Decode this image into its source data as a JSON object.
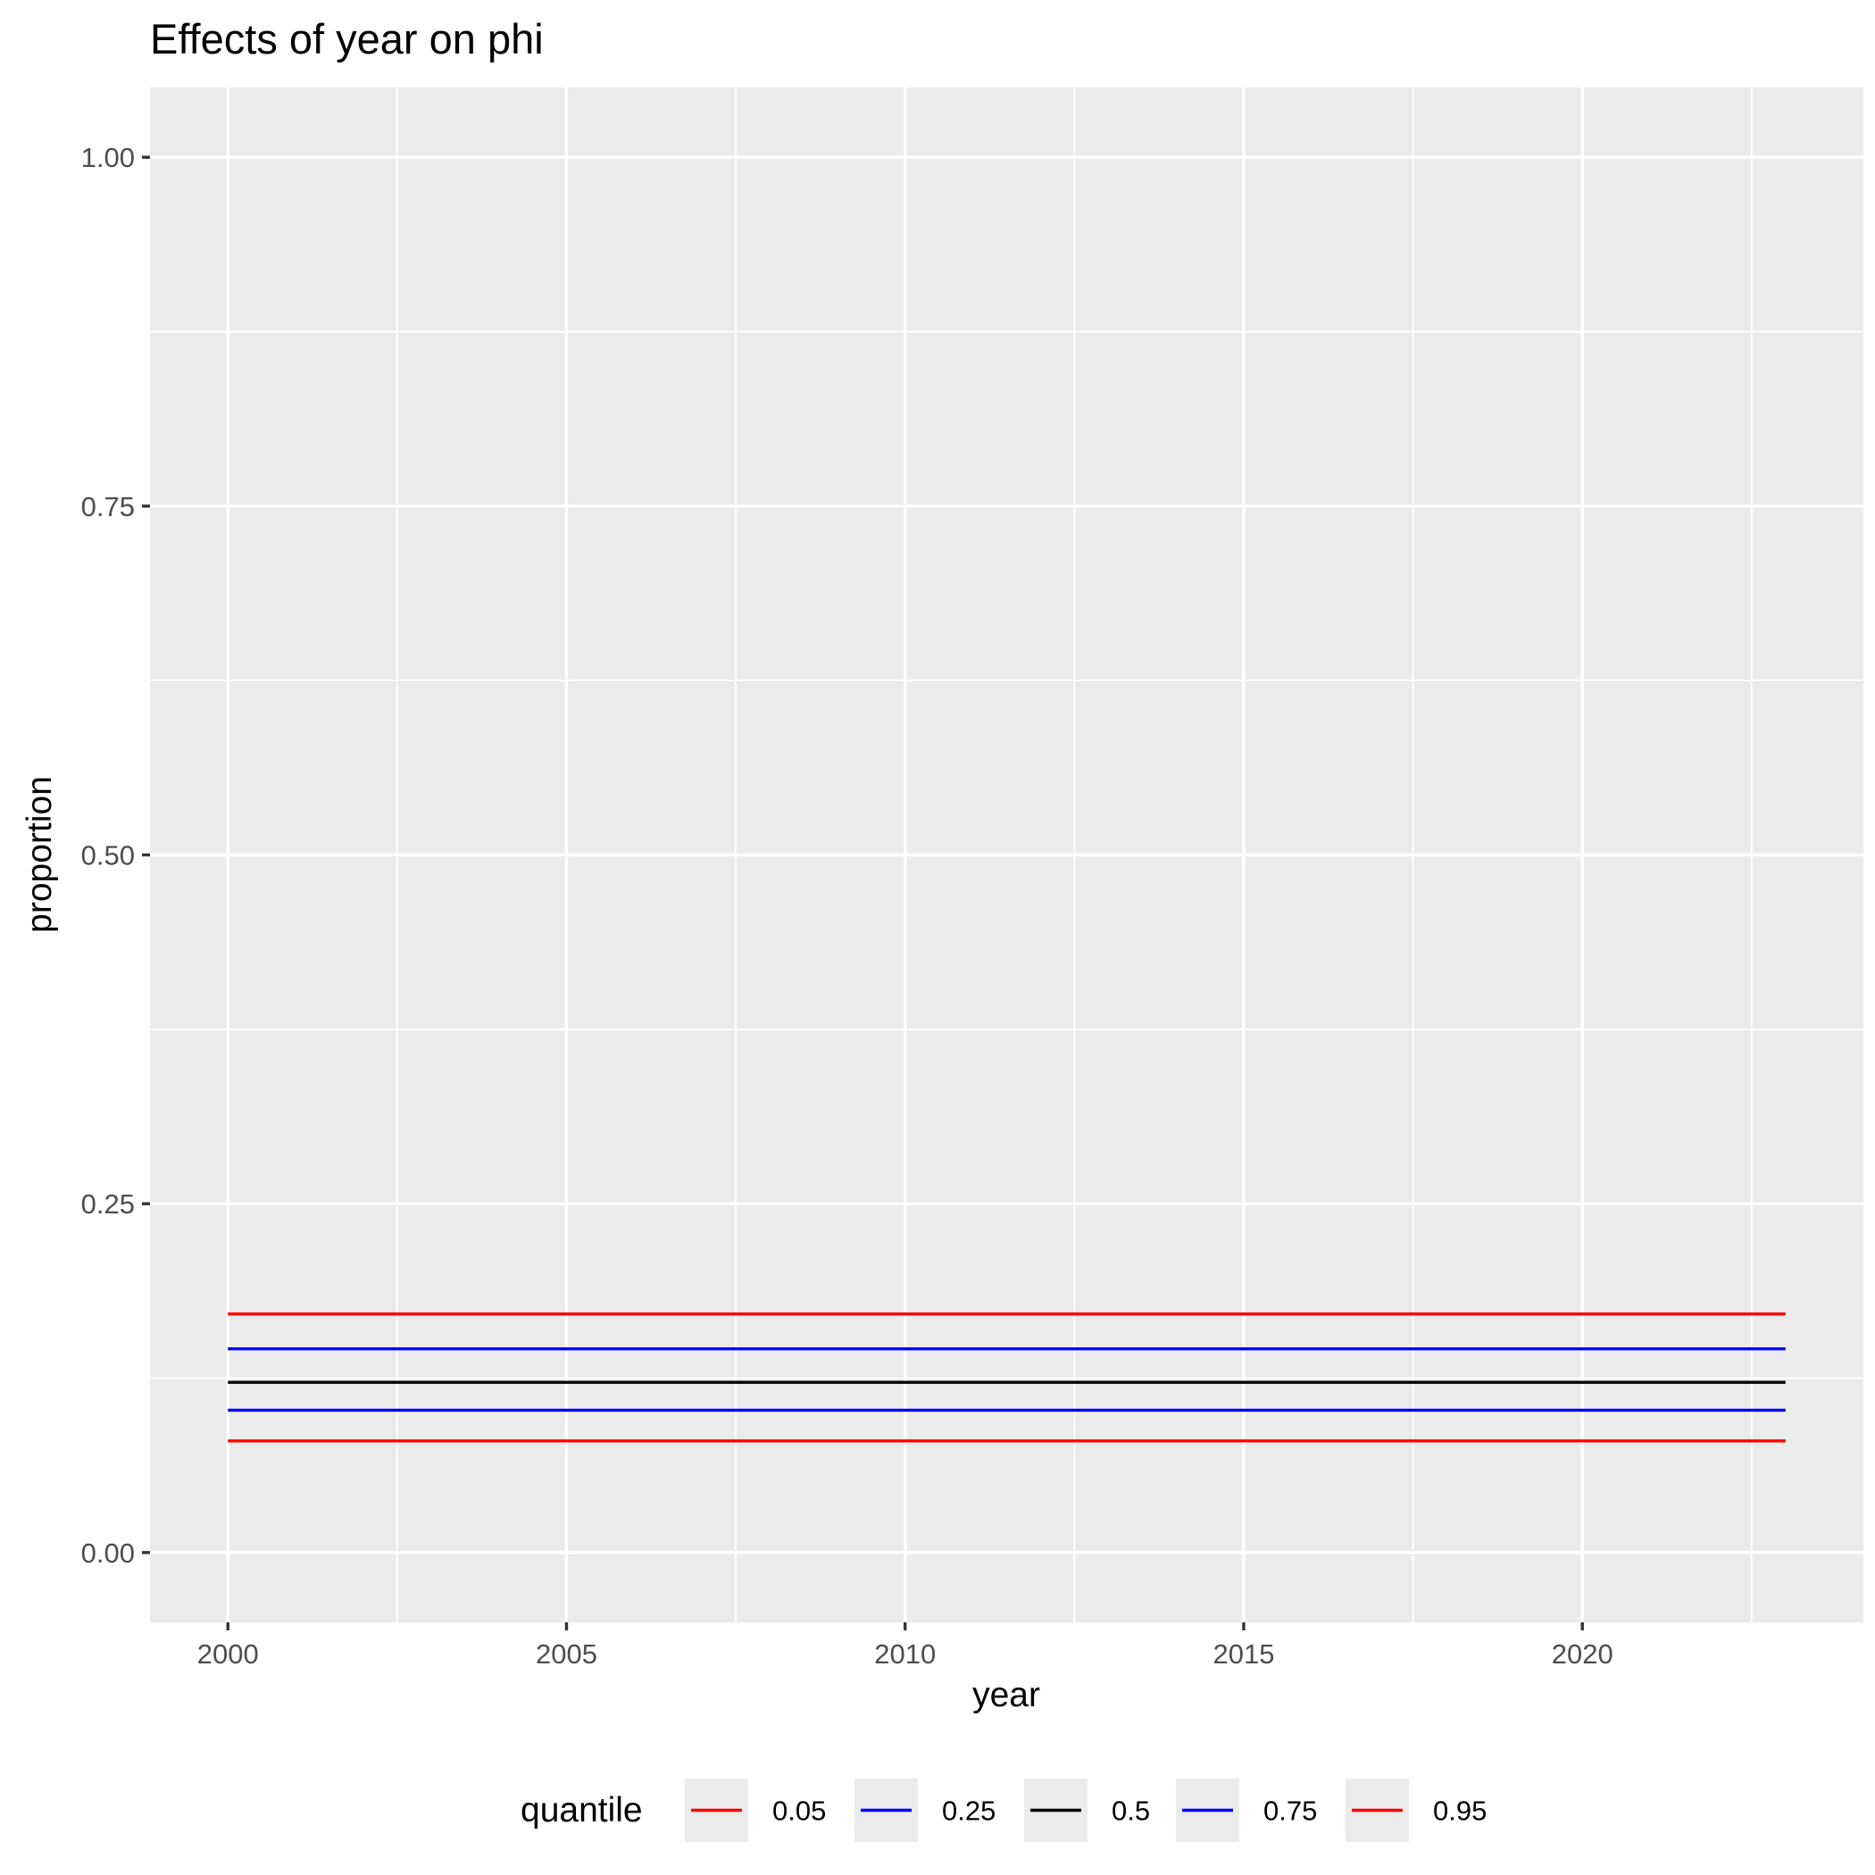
{
  "chart_data": {
    "type": "line",
    "title": "Effects of year on phi",
    "xlabel": "year",
    "ylabel": "proportion",
    "xlim": [
      1998.85,
      2024.15
    ],
    "ylim": [
      -0.05,
      1.05
    ],
    "x_ticks": [
      2000,
      2005,
      2010,
      2015,
      2020
    ],
    "x_tick_labels": [
      "2000",
      "2005",
      "2010",
      "2015",
      "2020"
    ],
    "y_ticks": [
      0,
      0.25,
      0.5,
      0.75,
      1
    ],
    "y_tick_labels": [
      "0.00",
      "0.25",
      "0.50",
      "0.75",
      "1.00"
    ],
    "grid": true,
    "legend": {
      "title": "quantile",
      "position": "bottom",
      "direction": "horizontal"
    },
    "x": [
      2000,
      2023
    ],
    "series": [
      {
        "name": "0.05",
        "color": "#ff0000",
        "values": [
          0.08,
          0.08
        ]
      },
      {
        "name": "0.25",
        "color": "#0000ff",
        "values": [
          0.102,
          0.102
        ]
      },
      {
        "name": "0.5",
        "color": "#000000",
        "values": [
          0.122,
          0.122
        ]
      },
      {
        "name": "0.75",
        "color": "#0000ff",
        "values": [
          0.146,
          0.146
        ]
      },
      {
        "name": "0.95",
        "color": "#ff0000",
        "values": [
          0.171,
          0.171
        ]
      }
    ]
  }
}
